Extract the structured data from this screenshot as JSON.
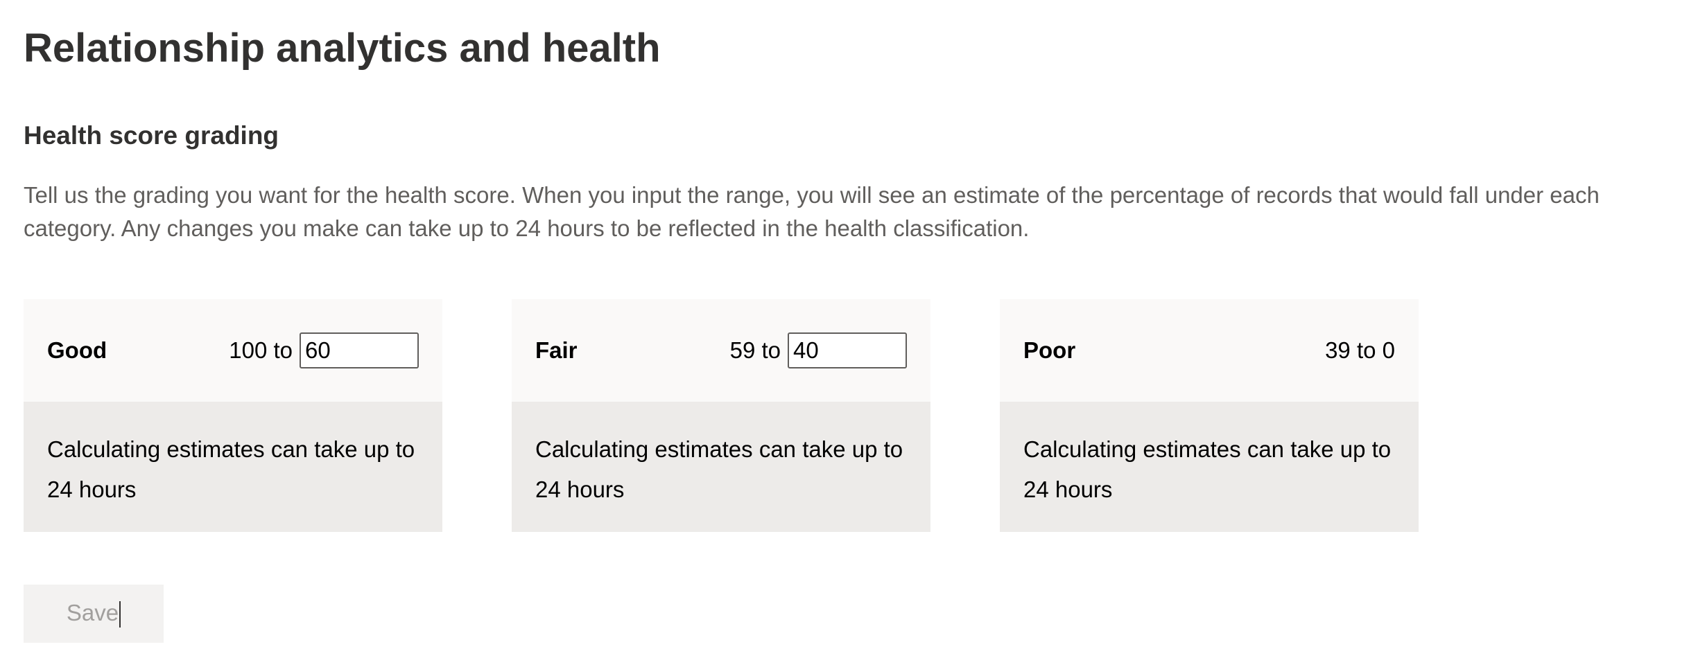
{
  "page": {
    "title": "Relationship analytics and health"
  },
  "section": {
    "title": "Health score grading",
    "description": "Tell us the grading you want for the health score. When you input the range, you will see an estimate of the percentage of records that would fall under each category. Any changes you make can take up to 24 hours to be reflected in the health classification."
  },
  "cards": [
    {
      "label": "Good",
      "range_prefix": "100 to",
      "range_input_value": "60",
      "estimate_text": "Calculating estimates can take up to 24 hours"
    },
    {
      "label": "Fair",
      "range_prefix": "59 to",
      "range_input_value": "40",
      "estimate_text": "Calculating estimates can take up to 24 hours"
    },
    {
      "label": "Poor",
      "range_text": "39 to 0",
      "estimate_text": "Calculating estimates can take up to 24 hours"
    }
  ],
  "actions": {
    "save_label": "Save",
    "save_disabled": true
  },
  "colors": {
    "header_bg": "#faf9f8",
    "body_bg": "#edebe9",
    "disabled_button_bg": "#f3f2f1",
    "disabled_button_text": "#a19f9d"
  }
}
